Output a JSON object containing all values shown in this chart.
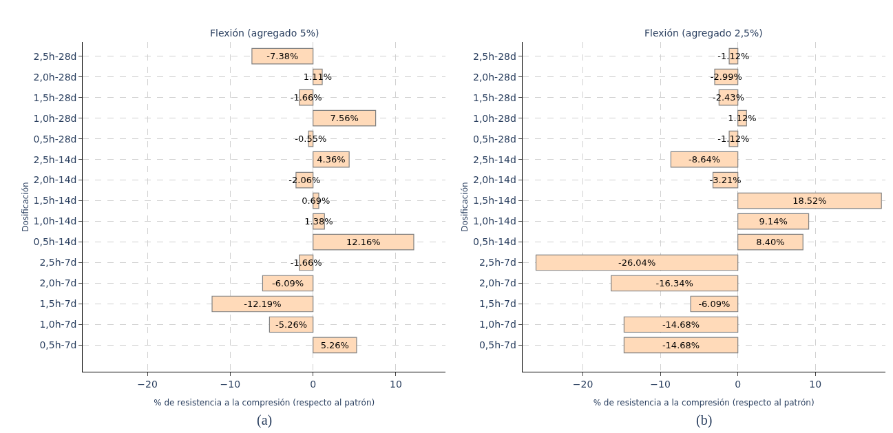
{
  "chart_data": [
    {
      "type": "bar",
      "orientation": "horizontal",
      "title": "Flexión (agregado 5%)",
      "xlabel": "% de resistencia a la compresión (respecto al patrón)",
      "ylabel": "Dosificación",
      "categories": [
        "2,5h-28d",
        "2,0h-28d",
        "1,5h-28d",
        "1,0h-28d",
        "0,5h-28d",
        "2,5h-14d",
        "2,0h-14d",
        "1,5h-14d",
        "1,0h-14d",
        "0,5h-14d",
        "2,5h-7d",
        "2,0h-7d",
        "1,5h-7d",
        "1,0h-7d",
        "0,5h-7d"
      ],
      "values": [
        -7.38,
        1.11,
        -1.66,
        7.56,
        -0.55,
        4.36,
        -2.06,
        0.69,
        1.38,
        12.16,
        -1.66,
        -6.09,
        -12.19,
        -5.26,
        5.26
      ],
      "value_labels": [
        "-7.38%",
        "1.11%",
        "-1.66%",
        "7.56%",
        "-0.55%",
        "4.36%",
        "-2.06%",
        "0.69%",
        "1.38%",
        "12.16%",
        "-1.66%",
        "-6.09%",
        "-12.19%",
        "-5.26%",
        "5.26%"
      ],
      "color": "#ffdab9",
      "xlim": [
        -27.8,
        16
      ],
      "xticks": [
        -20,
        -10,
        0,
        10
      ],
      "grid": true,
      "annotations": [
        "(a)"
      ]
    },
    {
      "type": "bar",
      "orientation": "horizontal",
      "title": "Flexión (agregado 2,5%)",
      "xlabel": "% de resistencia a la compresión (respecto al patrón)",
      "ylabel": "Dosificación",
      "categories": [
        "2,5h-28d",
        "2,0h-28d",
        "1,5h-28d",
        "1,0h-28d",
        "0,5h-28d",
        "2,5h-14d",
        "2,0h-14d",
        "1,5h-14d",
        "1,0h-14d",
        "0,5h-14d",
        "2,5h-7d",
        "2,0h-7d",
        "1,5h-7d",
        "1,0h-7d",
        "0,5h-7d"
      ],
      "values": [
        -1.12,
        -2.99,
        -2.43,
        1.12,
        -1.12,
        -8.64,
        -3.21,
        18.52,
        9.14,
        8.4,
        -26.04,
        -16.34,
        -6.09,
        -14.68,
        -14.68
      ],
      "value_labels": [
        "-1.12%",
        "-2.99%",
        "-2.43%",
        "1.12%",
        "-1.12%",
        "-8.64%",
        "-3.21%",
        "18.52%",
        "9.14%",
        "8.40%",
        "-26.04%",
        "-16.34%",
        "-6.09%",
        "-14.68%",
        "-14.68%"
      ],
      "color": "#ffdab9",
      "xlim": [
        -27.8,
        19
      ],
      "xticks": [
        -20,
        -10,
        0,
        10
      ],
      "grid": true,
      "annotations": [
        "(b)"
      ]
    }
  ]
}
